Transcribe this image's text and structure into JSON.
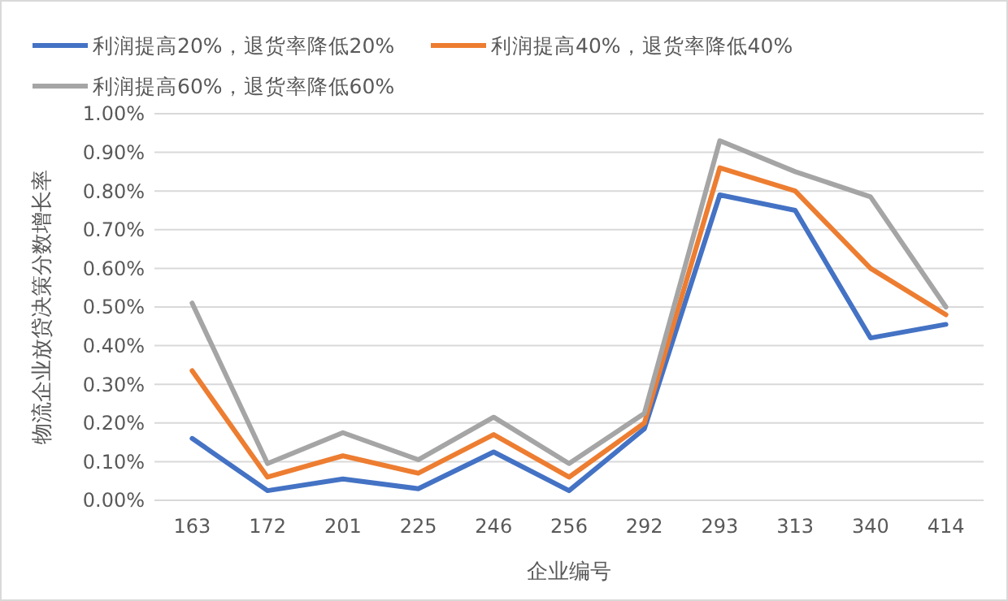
{
  "chart_data": {
    "type": "line",
    "xlabel": "企业编号",
    "ylabel": "物流企业放贷决策分数增长率",
    "categories": [
      "163",
      "172",
      "201",
      "225",
      "246",
      "256",
      "292",
      "293",
      "313",
      "340",
      "414"
    ],
    "series": [
      {
        "name": "利润提高20%，退货率降低20%",
        "color": "#4472c4",
        "values": [
          0.16,
          0.025,
          0.055,
          0.03,
          0.125,
          0.025,
          0.185,
          0.79,
          0.75,
          0.42,
          0.455
        ]
      },
      {
        "name": "利润提高40%，退货率降低40%",
        "color": "#ed7d31",
        "values": [
          0.335,
          0.06,
          0.115,
          0.07,
          0.17,
          0.06,
          0.2,
          0.86,
          0.8,
          0.6,
          0.48
        ]
      },
      {
        "name": "利润提高60%，退货率降低60%",
        "color": "#a5a5a5",
        "values": [
          0.51,
          0.095,
          0.175,
          0.105,
          0.215,
          0.095,
          0.225,
          0.93,
          0.85,
          0.785,
          0.5
        ]
      }
    ],
    "ylim": [
      0,
      1
    ],
    "yticks": [
      {
        "value": 0,
        "label": "0.00%"
      },
      {
        "value": 0.1,
        "label": "0.10%"
      },
      {
        "value": 0.2,
        "label": "0.20%"
      },
      {
        "value": 0.3,
        "label": "0.30%"
      },
      {
        "value": 0.4,
        "label": "0.40%"
      },
      {
        "value": 0.5,
        "label": "0.50%"
      },
      {
        "value": 0.6,
        "label": "0.60%"
      },
      {
        "value": 0.7,
        "label": "0.70%"
      },
      {
        "value": 0.8,
        "label": "0.80%"
      },
      {
        "value": 0.9,
        "label": "0.90%"
      },
      {
        "value": 1,
        "label": "1.00%"
      }
    ],
    "grid": "y",
    "legend": "top left",
    "marker": "none",
    "line_style": "solid"
  }
}
